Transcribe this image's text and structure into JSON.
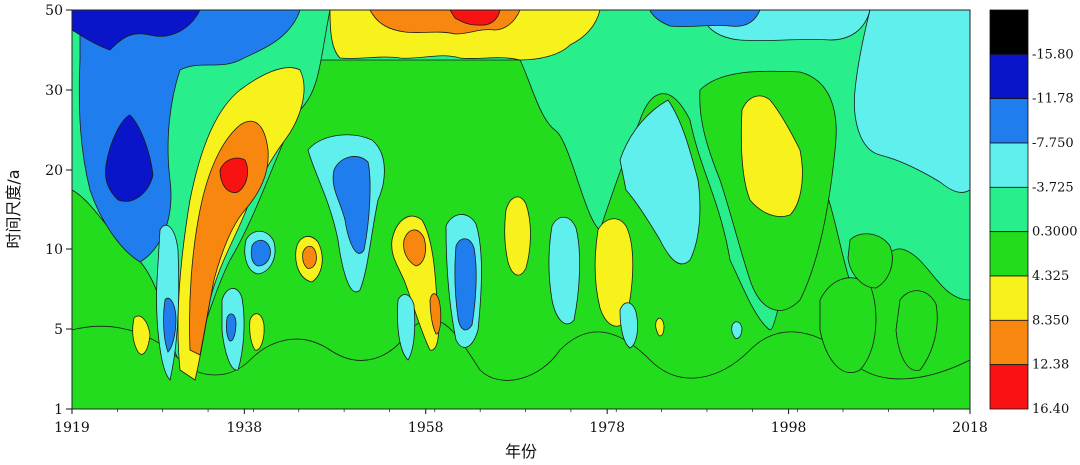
{
  "chart_data": {
    "type": "heatmap",
    "subtype": "filled-contour",
    "xlabel": "年份",
    "ylabel": "时间尺度/a",
    "x_ticks": [
      "1919",
      "1938",
      "1958",
      "1978",
      "1998",
      "2018"
    ],
    "y_ticks": [
      "1",
      "5",
      "10",
      "20",
      "30",
      "50"
    ],
    "x_range": [
      1919,
      2018
    ],
    "y_range": [
      1,
      50
    ],
    "legend_position": "right",
    "legend_labels": [
      "-15.80",
      "-11.78",
      "-7.750",
      "-3.725",
      "0.3000",
      "4.325",
      "8.350",
      "12.38",
      "16.40"
    ],
    "color_levels": [
      {
        "max": "-15.80",
        "color": "#000000"
      },
      {
        "min": "-15.80",
        "max": "-11.78",
        "color": "#0a14c8"
      },
      {
        "min": "-11.78",
        "max": "-7.750",
        "color": "#1f7ded"
      },
      {
        "min": "-7.750",
        "max": "-3.725",
        "color": "#5ff0ee"
      },
      {
        "min": "-3.725",
        "max": "0.3000",
        "color": "#28ee8c"
      },
      {
        "min": "0.3000",
        "max": "4.325",
        "color": "#22dc1d"
      },
      {
        "min": "4.325",
        "max": "8.350",
        "color": "#f8f21c"
      },
      {
        "min": "8.350",
        "max": "12.38",
        "color": "#f8870f"
      },
      {
        "min": "12.38",
        "max": "16.40",
        "color": "#f81212"
      }
    ],
    "grid": false,
    "features": [
      {
        "name": "blue-low-1924",
        "x": 1926,
        "y": 28,
        "level": -11.78
      },
      {
        "name": "dark-blue-core-1924",
        "x": 1925,
        "y": 20,
        "level": -15.8
      },
      {
        "name": "orange-high-1934",
        "x": 1935,
        "y": 18,
        "level": 8.35
      },
      {
        "name": "red-core-1936",
        "x": 1936,
        "y": 20,
        "level": 12.38
      },
      {
        "name": "blue-low-1950",
        "x": 1950,
        "y": 18,
        "level": -7.75
      },
      {
        "name": "orange-high-1957",
        "x": 1957,
        "y": 10,
        "level": 8.35
      },
      {
        "name": "blue-low-1963",
        "x": 1963,
        "y": 8,
        "level": -7.75
      },
      {
        "name": "yellow-high-1968",
        "x": 1968,
        "y": 14,
        "level": 4.325
      },
      {
        "name": "yellow-top-1960",
        "x": 1960,
        "y": 45,
        "level": 8.35
      },
      {
        "name": "cyan-low-1989",
        "x": 1989,
        "y": 20,
        "level": -3.725
      },
      {
        "name": "yellow-high-1997",
        "x": 1997,
        "y": 22,
        "level": 4.325
      },
      {
        "name": "cyan-low-2013",
        "x": 2013,
        "y": 25,
        "level": -3.725
      }
    ]
  }
}
